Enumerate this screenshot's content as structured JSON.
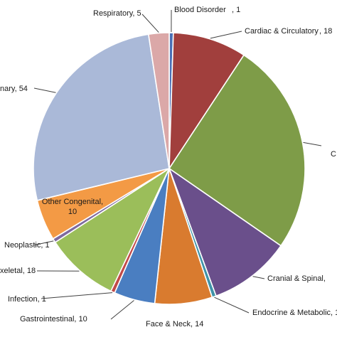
{
  "chart_data": {
    "type": "pie",
    "title": "",
    "start_angle_deg": 0,
    "direction": "clockwise",
    "slices": [
      {
        "label": "Blood Disorder",
        "value": 1,
        "color": "#4A6FB5"
      },
      {
        "label": "Cardiac & Circulatory",
        "value": 18,
        "color": "#A13F3D"
      },
      {
        "label": "C",
        "value": 52,
        "color": "#7E9C48"
      },
      {
        "label": "Cranial & Spinal,",
        "value": 20,
        "color": "#6A4F8B"
      },
      {
        "label": "Endocrine & Metabolic, 1",
        "value": 1,
        "color": "#3F93A8"
      },
      {
        "label": "Face & Neck, 14",
        "value": 14,
        "color": "#D97B2F"
      },
      {
        "label": "Gastrointestinal, 10",
        "value": 10,
        "color": "#4A7EC1"
      },
      {
        "label": "Infection, 1",
        "value": 1,
        "color": "#C24A48"
      },
      {
        "label": "xeletal, 18",
        "value": 18,
        "color": "#9BBE5A"
      },
      {
        "label": "Neoplastic, 1",
        "value": 1,
        "color": "#7E6A9F"
      },
      {
        "label": "Other Congenital, 10",
        "value": 10,
        "color": "#F39A45"
      },
      {
        "label": "nary, 54",
        "value": 54,
        "color": "#AAB9D8"
      },
      {
        "label": "Respiratory, 5",
        "value": 5,
        "color": "#DBA8A8"
      }
    ]
  }
}
